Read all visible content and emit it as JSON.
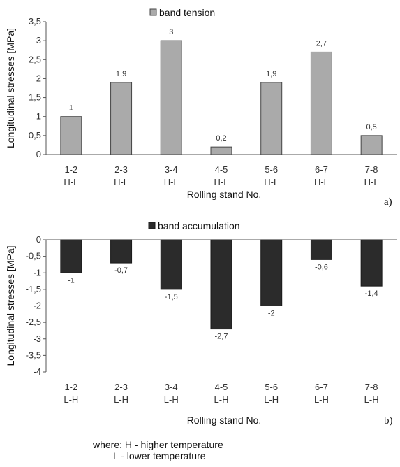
{
  "chart_data": [
    {
      "type": "bar",
      "legend": "band tension",
      "legend_position": "top-center",
      "color": "#aaaaaa",
      "ylabel": "Longitudinal stresses [MPa]",
      "xlabel": "Rolling stand No.",
      "panel_label": "a)",
      "ylim": [
        0,
        3.5
      ],
      "yticks": [
        "0",
        "0,5",
        "1",
        "1,5",
        "2",
        "2,5",
        "3",
        "3,5"
      ],
      "categories": [
        {
          "top": "1-2",
          "bottom": "H-L"
        },
        {
          "top": "2-3",
          "bottom": "H-L"
        },
        {
          "top": "3-4",
          "bottom": "H-L"
        },
        {
          "top": "4-5",
          "bottom": "H-L"
        },
        {
          "top": "5-6",
          "bottom": "H-L"
        },
        {
          "top": "6-7",
          "bottom": "H-L"
        },
        {
          "top": "7-8",
          "bottom": "H-L"
        }
      ],
      "values": [
        1,
        1.9,
        3,
        0.2,
        1.9,
        2.7,
        0.5
      ],
      "value_labels": [
        "1",
        "1,9",
        "3",
        "0,2",
        "1,9",
        "2,7",
        "0,5"
      ]
    },
    {
      "type": "bar",
      "legend": "band accumulation",
      "legend_position": "top-center",
      "color": "#2b2b2b",
      "ylabel": "Longitudinal stresses [MPa]",
      "xlabel": "Rolling stand No.",
      "panel_label": "b)",
      "ylim": [
        -4,
        0
      ],
      "yticks": [
        "0",
        "-0,5",
        "-1",
        "-1,5",
        "-2",
        "-2,5",
        "-3",
        "-3,5",
        "-4"
      ],
      "categories": [
        {
          "top": "1-2",
          "bottom": "L-H"
        },
        {
          "top": "2-3",
          "bottom": "L-H"
        },
        {
          "top": "3-4",
          "bottom": "L-H"
        },
        {
          "top": "4-5",
          "bottom": "L-H"
        },
        {
          "top": "5-6",
          "bottom": "L-H"
        },
        {
          "top": "6-7",
          "bottom": "L-H"
        },
        {
          "top": "7-8",
          "bottom": "L-H"
        }
      ],
      "values": [
        -1,
        -0.7,
        -1.5,
        -2.7,
        -2,
        -0.6,
        -1.4
      ],
      "value_labels": [
        "-1",
        "-0,7",
        "-1,5",
        "-2,7",
        "-2",
        "-0,6",
        "-1,4"
      ]
    }
  ],
  "footnote": {
    "line1": "where: H - higher temperature",
    "line2": "L - lower temperature"
  }
}
